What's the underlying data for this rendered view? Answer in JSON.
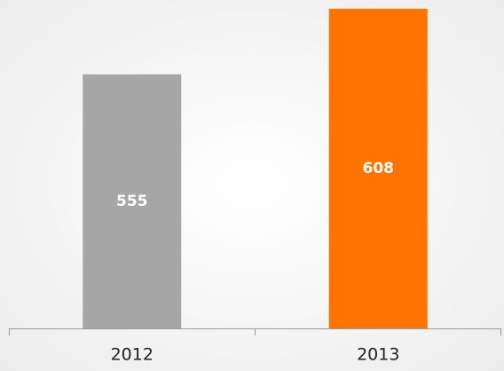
{
  "chart_data": {
    "type": "bar",
    "categories": [
      "2012",
      "2013"
    ],
    "values": [
      555,
      608
    ],
    "colors": [
      "#a6a6a6",
      "#ff7400"
    ],
    "ylim": [
      350,
      615
    ]
  }
}
